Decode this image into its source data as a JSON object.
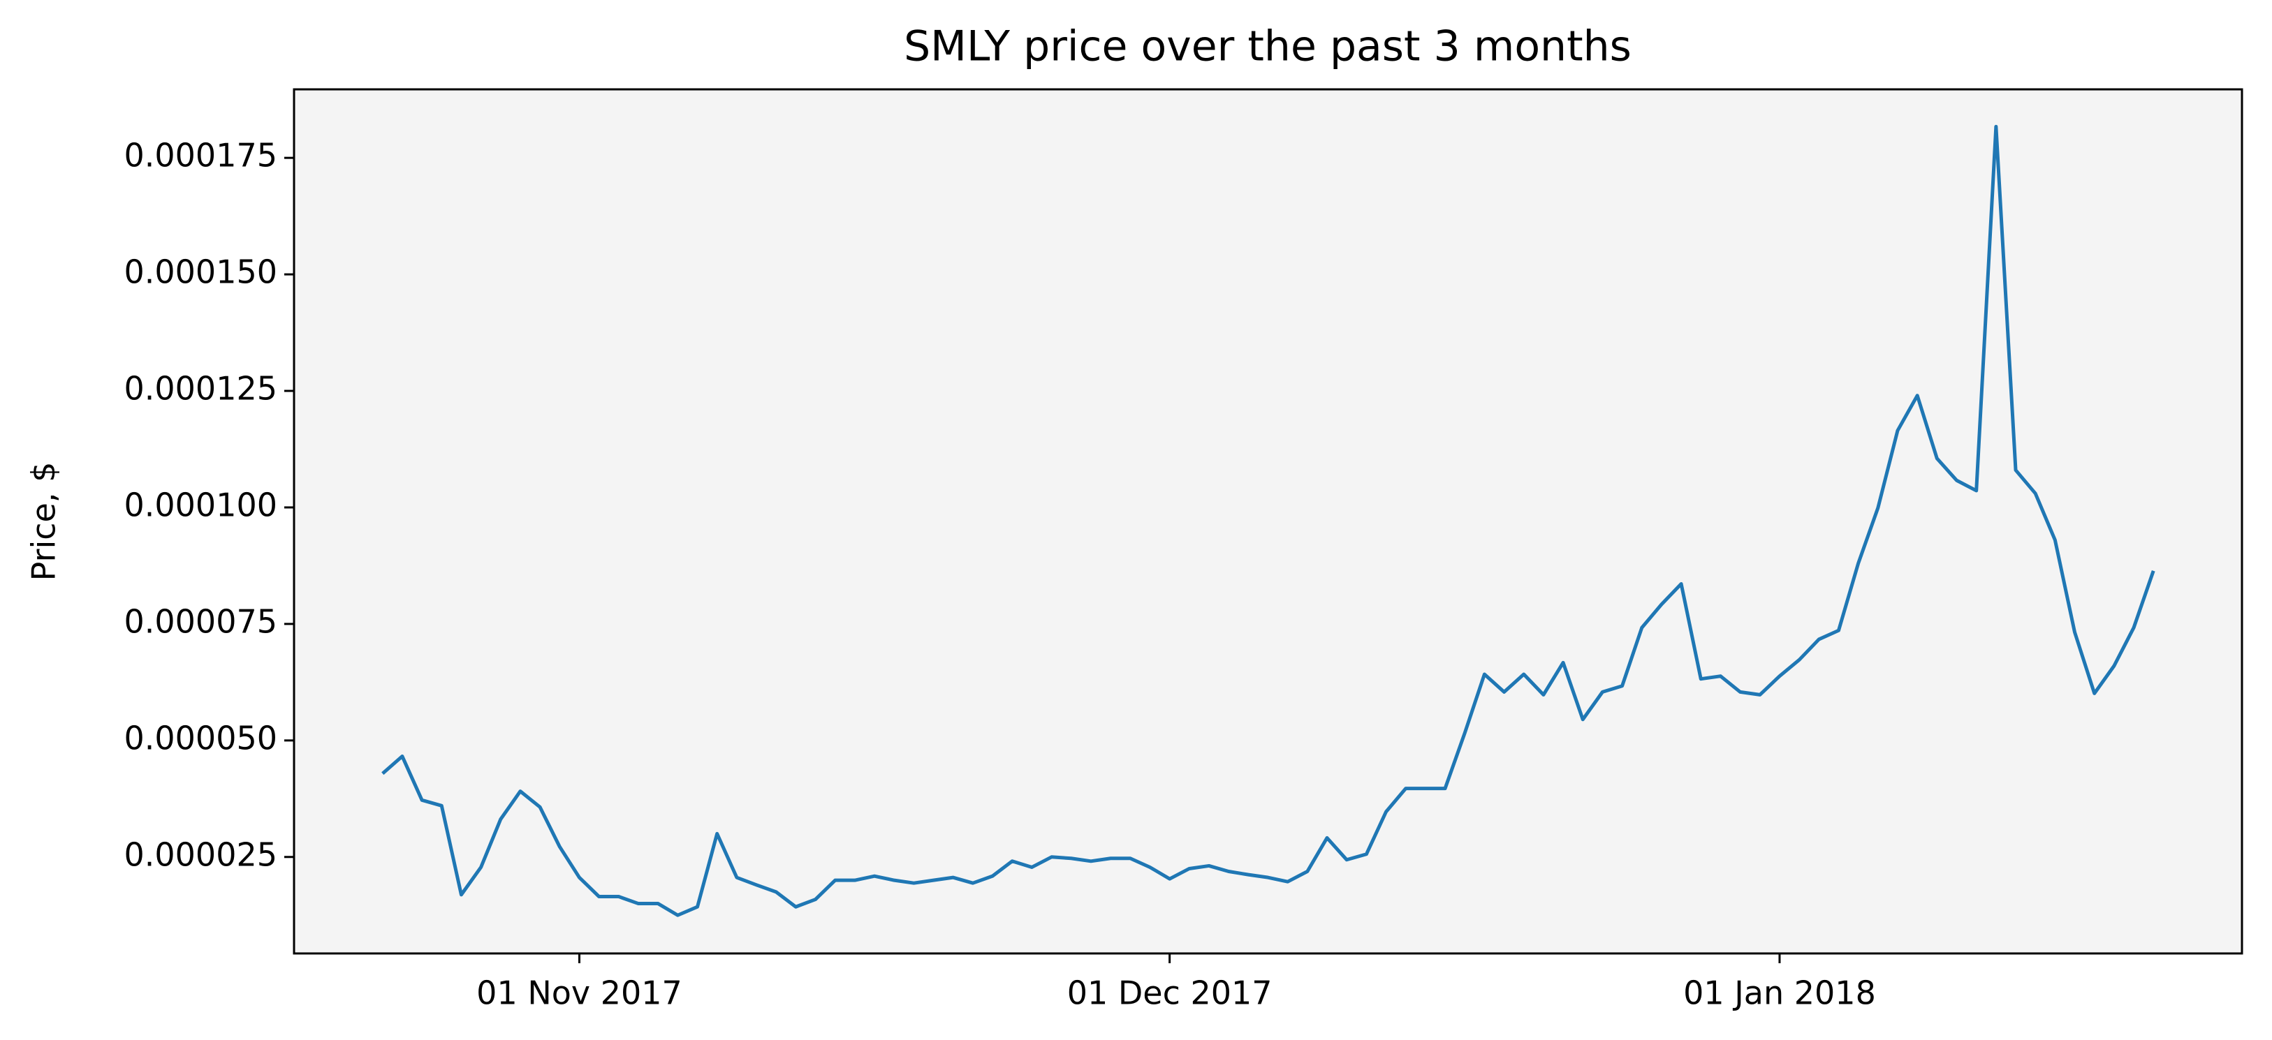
{
  "chart_data": {
    "type": "line",
    "title": "SMLY price over the past 3 months",
    "ylabel": "Price, $",
    "x": [
      "2017-10-22",
      "2017-10-23",
      "2017-10-24",
      "2017-10-25",
      "2017-10-26",
      "2017-10-27",
      "2017-10-28",
      "2017-10-29",
      "2017-10-30",
      "2017-10-31",
      "2017-11-01",
      "2017-11-02",
      "2017-11-03",
      "2017-11-04",
      "2017-11-05",
      "2017-11-06",
      "2017-11-07",
      "2017-11-08",
      "2017-11-09",
      "2017-11-10",
      "2017-11-11",
      "2017-11-12",
      "2017-11-13",
      "2017-11-14",
      "2017-11-15",
      "2017-11-16",
      "2017-11-17",
      "2017-11-18",
      "2017-11-19",
      "2017-11-20",
      "2017-11-21",
      "2017-11-22",
      "2017-11-23",
      "2017-11-24",
      "2017-11-25",
      "2017-11-26",
      "2017-11-27",
      "2017-11-28",
      "2017-11-29",
      "2017-11-30",
      "2017-12-01",
      "2017-12-02",
      "2017-12-03",
      "2017-12-04",
      "2017-12-05",
      "2017-12-06",
      "2017-12-07",
      "2017-12-08",
      "2017-12-09",
      "2017-12-10",
      "2017-12-11",
      "2017-12-12",
      "2017-12-13",
      "2017-12-14",
      "2017-12-15",
      "2017-12-16",
      "2017-12-17",
      "2017-12-18",
      "2017-12-19",
      "2017-12-20",
      "2017-12-21",
      "2017-12-22",
      "2017-12-23",
      "2017-12-24",
      "2017-12-25",
      "2017-12-26",
      "2017-12-27",
      "2017-12-28",
      "2017-12-29",
      "2017-12-30",
      "2017-12-31",
      "2018-01-01",
      "2018-01-02",
      "2018-01-03",
      "2018-01-04",
      "2018-01-05",
      "2018-01-06",
      "2018-01-07",
      "2018-01-08",
      "2018-01-09",
      "2018-01-10",
      "2018-01-11",
      "2018-01-12",
      "2018-01-13",
      "2018-01-14",
      "2018-01-15",
      "2018-01-16",
      "2018-01-17",
      "2018-01-18",
      "2018-01-19",
      "2018-01-20"
    ],
    "series": [
      {
        "color": "#1f77b4",
        "values": [
          4.29e-05,
          4.66e-05,
          3.72e-05,
          3.6e-05,
          1.69e-05,
          2.28e-05,
          3.31e-05,
          3.91e-05,
          3.57e-05,
          2.72e-05,
          2.06e-05,
          1.65e-05,
          1.65e-05,
          1.5e-05,
          1.5e-05,
          1.25e-05,
          1.43e-05,
          3e-05,
          2.06e-05,
          1.9e-05,
          1.75e-05,
          1.43e-05,
          1.59e-05,
          2e-05,
          2e-05,
          2.09e-05,
          2e-05,
          1.94e-05,
          2e-05,
          2.06e-05,
          1.94e-05,
          2.09e-05,
          2.41e-05,
          2.28e-05,
          2.5e-05,
          2.47e-05,
          2.41e-05,
          2.47e-05,
          2.47e-05,
          2.28e-05,
          2.03e-05,
          2.25e-05,
          2.31e-05,
          2.19e-05,
          2.12e-05,
          2.06e-05,
          1.97e-05,
          2.19e-05,
          2.91e-05,
          2.44e-05,
          2.56e-05,
          3.47e-05,
          3.97e-05,
          3.97e-05,
          3.97e-05,
          5.16e-05,
          6.42e-05,
          6.04e-05,
          6.42e-05,
          5.98e-05,
          6.67e-05,
          5.45e-05,
          6.04e-05,
          6.17e-05,
          7.42e-05,
          7.92e-05,
          8.36e-05,
          6.32e-05,
          6.38e-05,
          6.04e-05,
          5.98e-05,
          6.38e-05,
          6.73e-05,
          7.17e-05,
          7.36e-05,
          8.8e-05,
          9.99e-05,
          0.0001165,
          0.000124,
          0.0001105,
          0.0001058,
          0.0001036,
          0.0001817,
          0.000108,
          0.000103,
          9.3e-05,
          7.32e-05,
          6.01e-05,
          6.6e-05,
          7.42e-05,
          8.64e-05
        ]
      }
    ],
    "xlim": [
      "2017-10-17T12:00:00Z",
      "2018-01-24T12:00:00Z"
    ],
    "xticks": [
      {
        "value": "2017-11-01",
        "label": "01 Nov 2017"
      },
      {
        "value": "2017-12-01",
        "label": "01 Dec 2017"
      },
      {
        "value": "2018-01-01",
        "label": "01 Jan 2018"
      }
    ],
    "ylim": [
      4.3e-06,
      0.0001897
    ],
    "yticks": [
      2.5e-05,
      {
        "value": 5e-05,
        "label": "0.000050"
      },
      7.5e-05,
      {
        "value": 0.0001,
        "label": "0.000100"
      },
      0.000125,
      {
        "value": 0.00015,
        "label": "0.000150"
      },
      0.000175
    ],
    "background": "#f4f4f4"
  }
}
